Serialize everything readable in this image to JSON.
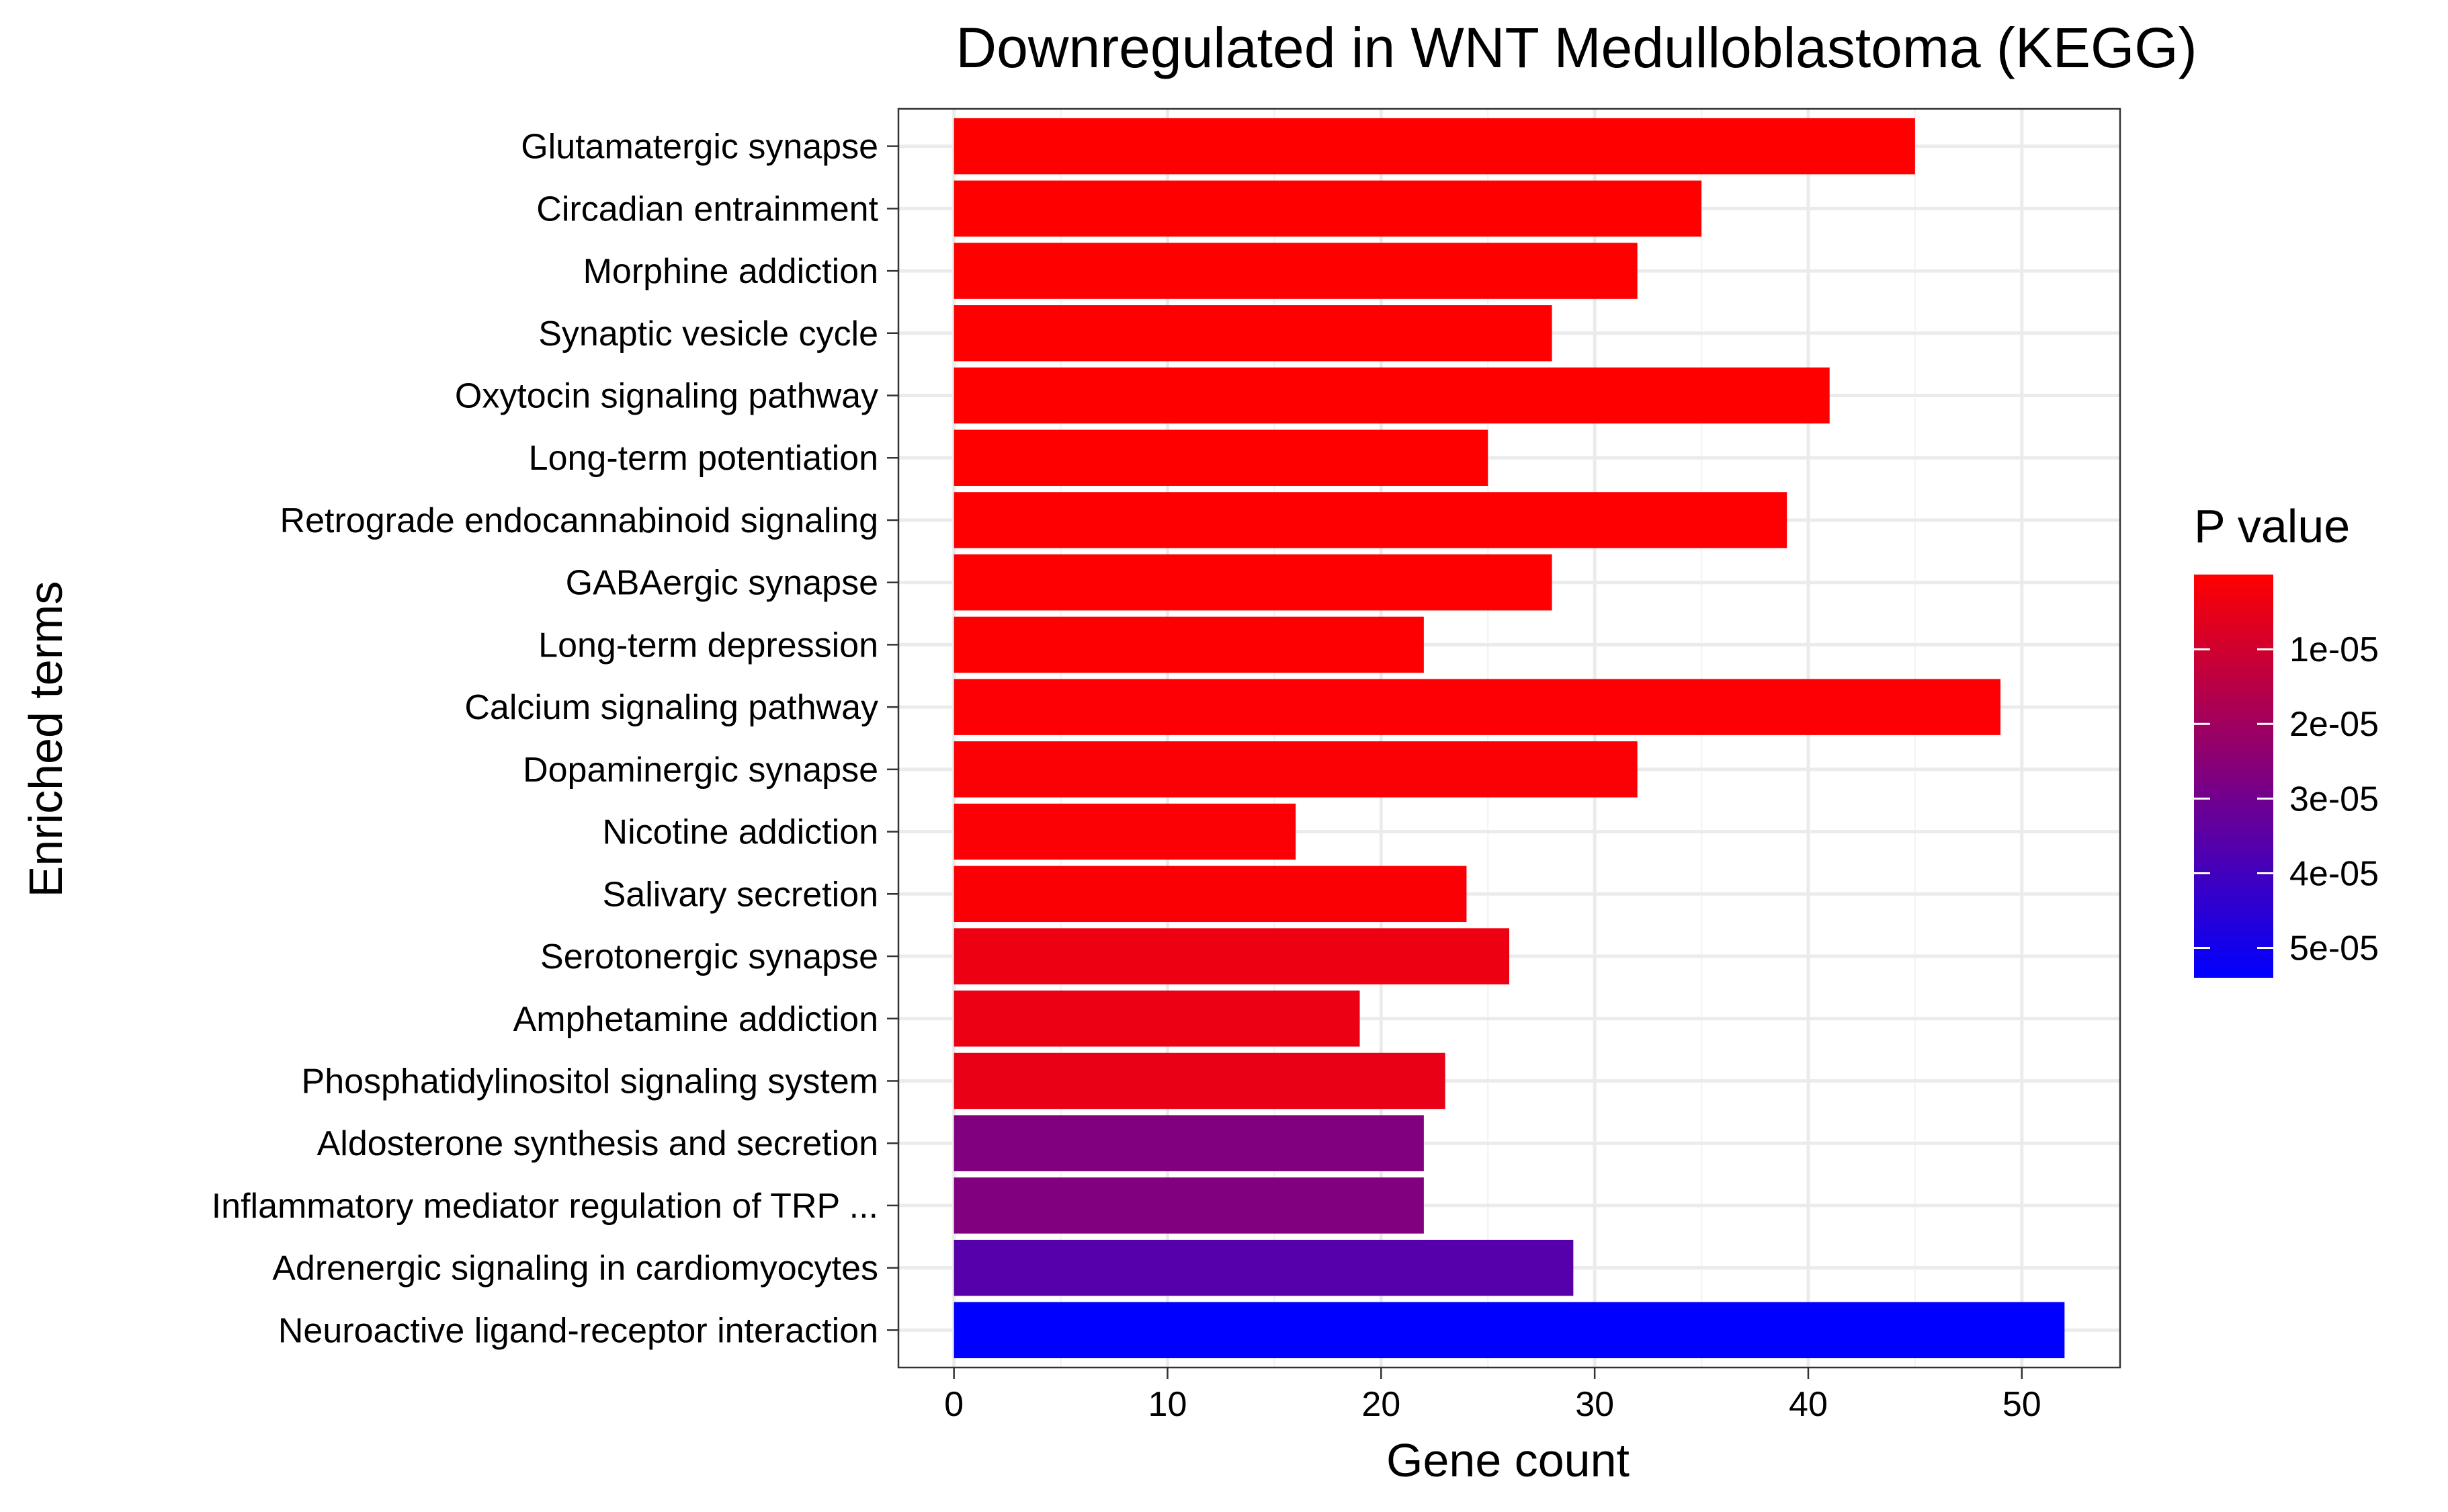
{
  "chart_data": {
    "type": "bar",
    "orientation": "horizontal",
    "title": "Downregulated in WNT Medulloblastoma (KEGG)",
    "xlabel": "Gene count",
    "ylabel": "Enriched terms",
    "xlim": [
      -2.6,
      54.6
    ],
    "xticks": [
      0,
      10,
      20,
      30,
      40,
      50
    ],
    "grid": true,
    "categories": [
      "Glutamatergic synapse",
      "Circadian entrainment",
      "Morphine addiction",
      "Synaptic vesicle cycle",
      "Oxytocin signaling pathway",
      "Long-term potentiation",
      "Retrograde endocannabinoid signaling",
      "GABAergic synapse",
      "Long-term depression",
      "Calcium signaling pathway",
      "Dopaminergic synapse",
      "Nicotine addiction",
      "Salivary secretion",
      "Serotonergic synapse",
      "Amphetamine addiction",
      "Phosphatidylinositol signaling system",
      "Aldosterone synthesis and secretion",
      "Inflammatory mediator regulation of TRP ...",
      "Adrenergic signaling in cardiomyocytes",
      "Neuroactive ligand-receptor interaction"
    ],
    "values": [
      45,
      35,
      32,
      28,
      41,
      25,
      39,
      28,
      22,
      49,
      32,
      16,
      24,
      26,
      19,
      23,
      22,
      22,
      29,
      52
    ],
    "pvalues": [
      1e-09,
      5e-09,
      1e-08,
      2e-08,
      5e-08,
      1e-07,
      2e-07,
      3e-07,
      5e-07,
      7e-07,
      8e-07,
      9e-07,
      1e-06,
      3.8e-06,
      4.2e-06,
      4.6e-06,
      2.7e-05,
      2.7e-05,
      3.6e-05,
      5.4e-05
    ],
    "legend": {
      "title": "P value",
      "placement": "right",
      "min": 0,
      "max": 5.4e-05,
      "low_color": "#ff0000",
      "high_color": "#0000ff",
      "ticks": [
        1e-05,
        2e-05,
        3e-05,
        4e-05,
        5e-05
      ],
      "tick_labels": [
        "1e-05",
        "2e-05",
        "3e-05",
        "4e-05",
        "5e-05"
      ]
    }
  }
}
